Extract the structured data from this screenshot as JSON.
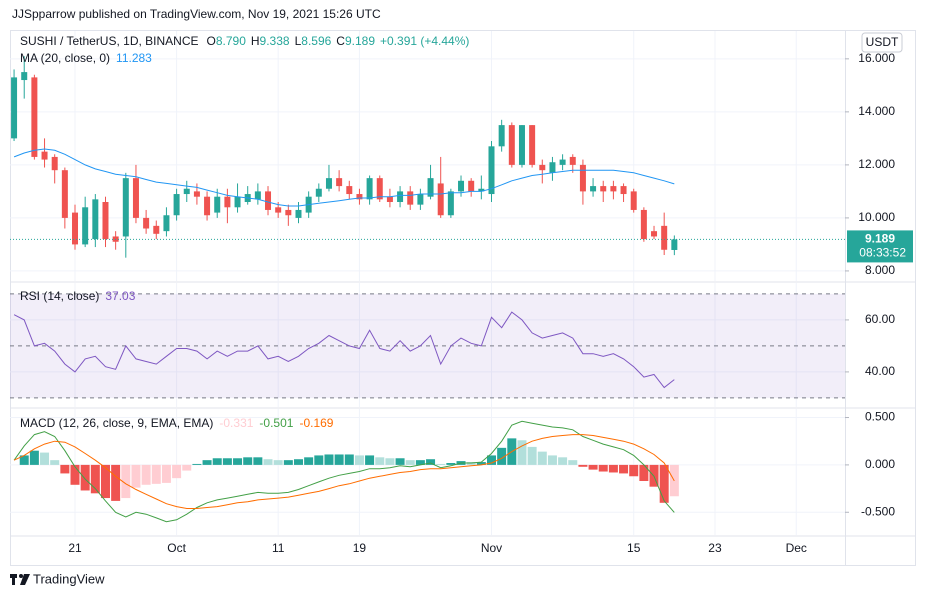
{
  "header": "JJSpparrow published on TradingView.com, Nov 19, 2021 15:26 UTC",
  "footer": "TradingView",
  "chart_data": [
    {
      "type": "candlestick",
      "title": "SUSHI / TetherUS, 1D, BINANCE",
      "ohlc_prefixes": [
        "O",
        "H",
        "L",
        "C"
      ],
      "ohlc_labels": [
        "8.790",
        "9.338",
        "8.596",
        "9.189"
      ],
      "change_label": "+0.391 (+4.44%)",
      "currency": "USDT",
      "last_price_label": "9.189",
      "countdown": "08:33:52",
      "open": [
        13.0,
        15.2,
        15.3,
        12.5,
        12.3,
        11.8,
        10.2,
        9.0,
        9.2,
        10.6,
        9.3,
        9.3,
        11.5,
        10.0,
        9.7,
        9.5,
        10.1,
        10.9,
        11.0,
        10.8,
        10.2,
        10.8,
        10.4,
        10.6,
        10.7,
        11.0,
        10.4,
        10.3,
        10.0,
        10.2,
        10.8,
        11.1,
        11.5,
        11.2,
        10.9,
        10.7,
        11.5,
        10.8,
        10.6,
        11.0,
        10.5,
        10.8,
        11.3,
        10.1,
        11.0,
        11.4,
        11.0,
        10.9,
        12.7,
        13.5,
        12.0,
        13.5,
        12.0,
        11.7,
        12.0,
        12.3,
        12.0,
        11.0,
        11.2,
        11.2,
        11.2,
        11.0,
        10.3,
        9.5,
        9.7,
        8.79
      ],
      "high": [
        15.6,
        16.1,
        15.4,
        13.0,
        12.4,
        11.9,
        10.5,
        10.8,
        10.9,
        10.8,
        9.5,
        11.7,
        12.0,
        10.3,
        9.9,
        10.4,
        11.1,
        11.4,
        11.3,
        11.0,
        11.1,
        11.1,
        11.3,
        11.2,
        11.3,
        11.2,
        10.6,
        10.5,
        10.6,
        11.0,
        11.3,
        12.0,
        11.8,
        11.4,
        11.1,
        11.6,
        11.6,
        11.1,
        11.2,
        11.2,
        11.1,
        12.0,
        12.3,
        11.1,
        11.6,
        11.5,
        11.6,
        12.9,
        13.7,
        13.6,
        13.5,
        13.5,
        12.2,
        12.3,
        12.4,
        12.4,
        12.2,
        11.5,
        11.4,
        11.4,
        11.3,
        11.1,
        10.4,
        9.7,
        10.2,
        9.338
      ],
      "low": [
        12.9,
        14.5,
        12.2,
        11.9,
        11.3,
        9.6,
        8.8,
        8.9,
        8.9,
        8.9,
        8.8,
        8.5,
        9.8,
        9.4,
        9.2,
        9.3,
        9.9,
        10.6,
        10.5,
        9.9,
        10.0,
        9.8,
        10.2,
        10.5,
        10.5,
        10.1,
        10.0,
        9.7,
        9.8,
        10.0,
        10.6,
        11.0,
        11.0,
        10.7,
        10.5,
        10.5,
        10.6,
        10.4,
        10.4,
        10.3,
        10.3,
        10.7,
        10.0,
        10.0,
        10.8,
        10.8,
        10.7,
        10.6,
        12.5,
        11.9,
        11.9,
        11.9,
        11.3,
        11.4,
        11.8,
        11.7,
        10.5,
        10.8,
        10.6,
        10.7,
        10.6,
        10.2,
        9.1,
        9.2,
        8.6,
        8.596
      ],
      "close": [
        15.3,
        15.5,
        12.3,
        12.2,
        11.8,
        10.0,
        9.0,
        10.4,
        10.7,
        9.2,
        9.1,
        11.5,
        10.0,
        9.6,
        9.4,
        10.1,
        10.9,
        11.1,
        10.8,
        10.1,
        10.8,
        10.4,
        10.8,
        10.9,
        11.0,
        10.3,
        10.2,
        10.1,
        10.3,
        10.8,
        11.1,
        11.5,
        11.2,
        10.9,
        10.7,
        11.5,
        10.7,
        10.6,
        11.0,
        10.5,
        10.9,
        11.5,
        10.1,
        11.0,
        11.4,
        11.0,
        11.1,
        12.7,
        13.5,
        12.0,
        13.5,
        12.0,
        11.8,
        12.1,
        12.2,
        12.0,
        11.0,
        11.2,
        11.0,
        11.0,
        10.9,
        10.3,
        9.2,
        9.3,
        8.798,
        9.189
      ],
      "up_color": "#26a69a",
      "down_color": "#ef5350",
      "overlay": {
        "name": "MA (20, close, 0)",
        "color": "#2196f3",
        "value_label": "11.283",
        "values": [
          12.3,
          12.45,
          12.55,
          12.6,
          12.55,
          12.4,
          12.2,
          12.0,
          11.85,
          11.75,
          11.65,
          11.6,
          11.55,
          11.45,
          11.35,
          11.3,
          11.25,
          11.2,
          11.15,
          11.05,
          10.95,
          10.85,
          10.8,
          10.75,
          10.7,
          10.6,
          10.5,
          10.45,
          10.45,
          10.5,
          10.55,
          10.6,
          10.65,
          10.7,
          10.75,
          10.75,
          10.8,
          10.8,
          10.85,
          10.85,
          10.9,
          10.9,
          10.9,
          10.95,
          10.95,
          11.0,
          11.0,
          11.1,
          11.25,
          11.4,
          11.5,
          11.6,
          11.65,
          11.7,
          11.75,
          11.8,
          11.8,
          11.8,
          11.8,
          11.8,
          11.75,
          11.7,
          11.6,
          11.5,
          11.4,
          11.283
        ]
      },
      "xlim": [
        -0.4,
        81.8
      ],
      "xticks": [
        6,
        16,
        26,
        34,
        47,
        61,
        69,
        77
      ],
      "ylim": [
        7.62,
        17.05
      ],
      "yticks": [
        {
          "value": 8,
          "label": "8.000"
        },
        {
          "value": 10,
          "label": "10.000"
        },
        {
          "value": 12,
          "label": "12.000"
        },
        {
          "value": 14,
          "label": "14.000"
        },
        {
          "value": 16,
          "label": "16.000"
        }
      ],
      "grid": true
    },
    {
      "type": "line",
      "title": "RSI (14, close)",
      "color": "#7e57c2",
      "value_label": "37.03",
      "values": [
        62,
        60,
        50,
        51,
        48,
        43,
        40,
        45,
        46,
        42,
        41,
        50,
        45,
        44,
        43,
        46,
        49,
        49,
        48,
        45,
        48,
        46,
        48,
        48,
        50,
        45,
        46,
        44,
        46,
        49,
        51,
        54,
        52,
        50,
        49,
        56,
        49,
        48,
        52,
        48,
        50,
        54,
        43,
        50,
        53,
        51,
        50,
        61,
        57,
        63,
        60,
        55,
        53,
        54,
        55,
        53,
        47,
        47,
        46,
        47,
        45,
        42,
        38,
        39,
        34,
        37.03
      ],
      "band_levels": [
        70,
        50,
        30
      ],
      "xlim": [
        -0.4,
        81.8
      ],
      "xticks": [
        6,
        16,
        26,
        34,
        47,
        61,
        69,
        77
      ],
      "ylim": [
        26.5,
        74.2
      ],
      "yticks": [
        {
          "value": 40,
          "label": "40.00"
        },
        {
          "value": 60,
          "label": "60.00"
        }
      ],
      "grid": true
    },
    {
      "type": "macd",
      "title": "MACD (12, 26, close, 9, EMA, EMA)",
      "histogram": {
        "value_label": "-0.331",
        "colors": [
          "#26a69a",
          "#b2dfdb",
          "#ffcdd2",
          "#ef5350"
        ],
        "values": [
          0.0,
          0.1,
          0.15,
          0.13,
          0.05,
          -0.09,
          -0.21,
          -0.27,
          -0.3,
          -0.35,
          -0.38,
          -0.35,
          -0.24,
          -0.21,
          -0.2,
          -0.19,
          -0.14,
          -0.06,
          0.01,
          0.05,
          0.07,
          0.07,
          0.07,
          0.08,
          0.08,
          0.06,
          0.05,
          0.05,
          0.06,
          0.08,
          0.1,
          0.11,
          0.11,
          0.11,
          0.1,
          0.1,
          0.08,
          0.07,
          0.07,
          0.05,
          0.05,
          0.06,
          0.01,
          0.02,
          0.04,
          0.03,
          0.03,
          0.1,
          0.18,
          0.28,
          0.26,
          0.19,
          0.14,
          0.1,
          0.08,
          0.05,
          -0.02,
          -0.05,
          -0.07,
          -0.08,
          -0.09,
          -0.12,
          -0.17,
          -0.23,
          -0.4,
          -0.331
        ]
      },
      "macd": {
        "value_label": "-0.501",
        "color": "#43a047",
        "values": [
          0.05,
          0.2,
          0.32,
          0.35,
          0.3,
          0.15,
          -0.02,
          -0.15,
          -0.25,
          -0.38,
          -0.5,
          -0.55,
          -0.5,
          -0.52,
          -0.56,
          -0.6,
          -0.58,
          -0.52,
          -0.45,
          -0.4,
          -0.37,
          -0.35,
          -0.33,
          -0.31,
          -0.29,
          -0.3,
          -0.3,
          -0.29,
          -0.26,
          -0.22,
          -0.18,
          -0.14,
          -0.11,
          -0.09,
          -0.07,
          -0.04,
          -0.04,
          -0.03,
          -0.01,
          -0.02,
          0.0,
          0.02,
          -0.03,
          -0.01,
          0.02,
          0.02,
          0.03,
          0.12,
          0.25,
          0.42,
          0.46,
          0.44,
          0.42,
          0.4,
          0.39,
          0.37,
          0.3,
          0.26,
          0.22,
          0.19,
          0.16,
          0.1,
          0.0,
          -0.12,
          -0.38,
          -0.501
        ]
      },
      "signal": {
        "value_label": "-0.169",
        "color": "#ff6d00",
        "values": [
          0.05,
          0.1,
          0.17,
          0.22,
          0.25,
          0.24,
          0.19,
          0.12,
          0.05,
          -0.03,
          -0.12,
          -0.2,
          -0.26,
          -0.31,
          -0.36,
          -0.41,
          -0.44,
          -0.46,
          -0.46,
          -0.45,
          -0.44,
          -0.42,
          -0.4,
          -0.39,
          -0.37,
          -0.36,
          -0.35,
          -0.34,
          -0.32,
          -0.3,
          -0.28,
          -0.25,
          -0.22,
          -0.2,
          -0.17,
          -0.14,
          -0.12,
          -0.1,
          -0.08,
          -0.07,
          -0.05,
          -0.04,
          -0.04,
          -0.03,
          -0.02,
          -0.01,
          0.0,
          0.02,
          0.07,
          0.14,
          0.2,
          0.25,
          0.28,
          0.3,
          0.31,
          0.32,
          0.32,
          0.31,
          0.29,
          0.27,
          0.25,
          0.22,
          0.17,
          0.11,
          0.02,
          -0.169
        ]
      },
      "xlim": [
        -0.4,
        81.8
      ],
      "xticks": [
        {
          "value": 6,
          "label": "21"
        },
        {
          "value": 16,
          "label": "Oct"
        },
        {
          "value": 26,
          "label": "11"
        },
        {
          "value": 34,
          "label": "19"
        },
        {
          "value": 47,
          "label": "Nov"
        },
        {
          "value": 61,
          "label": "15"
        },
        {
          "value": 69,
          "label": "23"
        },
        {
          "value": 77,
          "label": "Dec"
        }
      ],
      "ylim": [
        -0.74,
        0.59
      ],
      "yticks": [
        {
          "value": -0.5,
          "label": "-0.500"
        },
        {
          "value": 0,
          "label": "0.000"
        },
        {
          "value": 0.5,
          "label": "0.500"
        }
      ],
      "grid": true
    }
  ]
}
